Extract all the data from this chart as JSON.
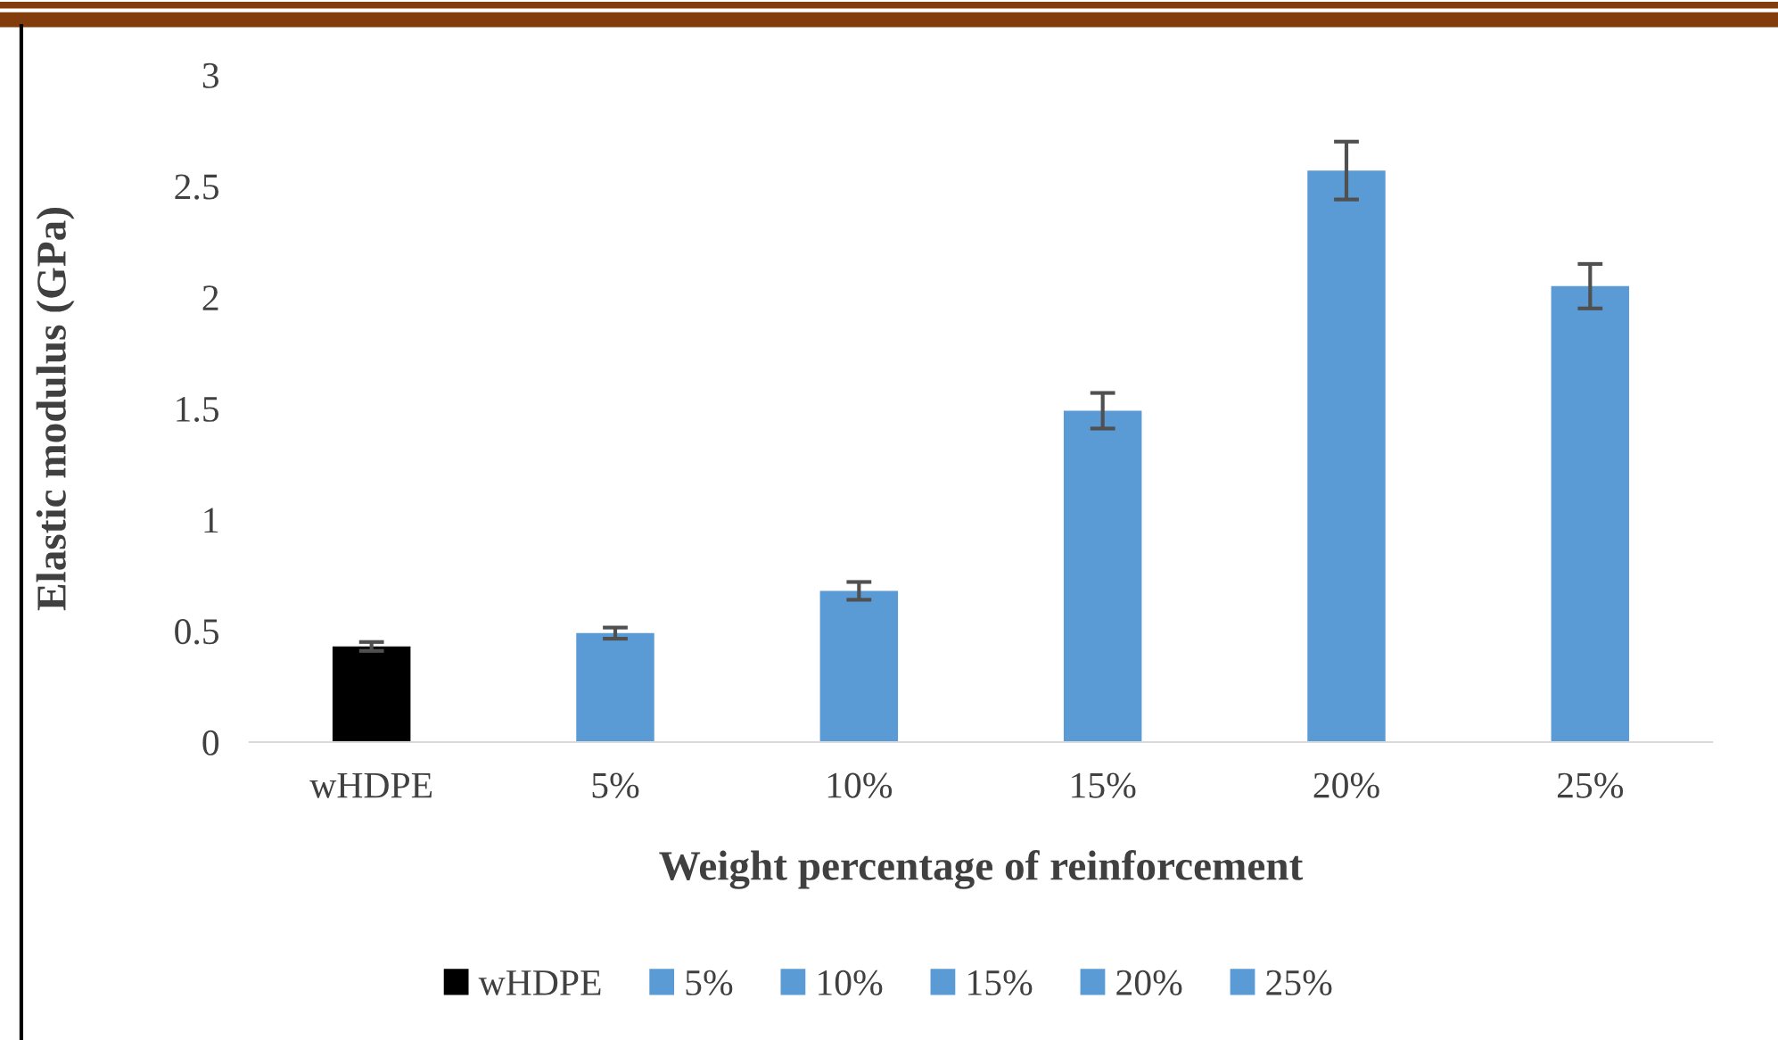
{
  "chart_data": {
    "type": "bar",
    "xlabel": "Weight percentage of reinforcement",
    "ylabel": "Elastic modulus (GPa)",
    "categories": [
      "wHDPE",
      "5%",
      "10%",
      "15%",
      "20%",
      "25%"
    ],
    "series": [
      {
        "name": "wHDPE",
        "color": "#000000",
        "values": [
          0.43,
          null,
          null,
          null,
          null,
          null
        ],
        "errors": [
          0.02,
          null,
          null,
          null,
          null,
          null
        ]
      },
      {
        "name": "5%",
        "color": "#5b9bd5",
        "values": [
          null,
          0.49,
          null,
          null,
          null,
          null
        ],
        "errors": [
          null,
          0.025,
          null,
          null,
          null,
          null
        ]
      },
      {
        "name": "10%",
        "color": "#5b9bd5",
        "values": [
          null,
          null,
          0.68,
          null,
          null,
          null
        ],
        "errors": [
          null,
          null,
          0.04,
          null,
          null,
          null
        ]
      },
      {
        "name": "15%",
        "color": "#5b9bd5",
        "values": [
          null,
          null,
          null,
          1.49,
          null,
          null
        ],
        "errors": [
          null,
          null,
          null,
          0.08,
          null,
          null
        ]
      },
      {
        "name": "20%",
        "color": "#5b9bd5",
        "values": [
          null,
          null,
          null,
          null,
          2.57,
          null
        ],
        "errors": [
          null,
          null,
          null,
          null,
          0.13,
          null
        ]
      },
      {
        "name": "25%",
        "color": "#5b9bd5",
        "values": [
          null,
          null,
          null,
          null,
          null,
          2.05
        ],
        "errors": [
          null,
          null,
          null,
          null,
          null,
          0.1
        ]
      }
    ],
    "ylim": [
      0,
      3
    ],
    "yticks": [
      0,
      0.5,
      1,
      1.5,
      2,
      2.5,
      3
    ],
    "grid": false,
    "legend": "bottom"
  }
}
